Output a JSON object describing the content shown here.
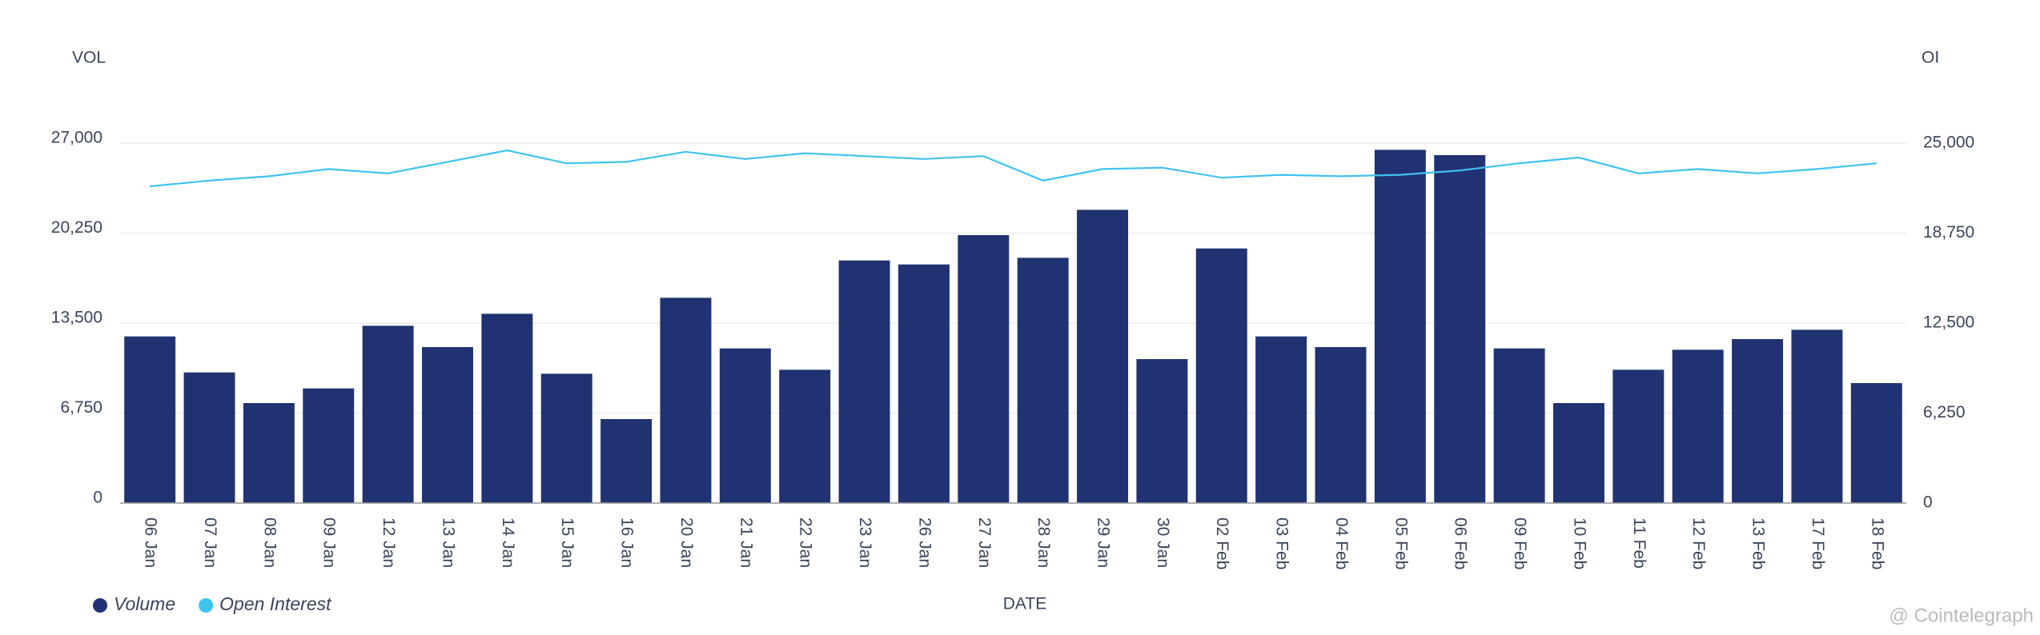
{
  "chart_data": {
    "type": "bar-line",
    "y_axis_title": "VOL",
    "y2_axis_title": "OI",
    "x_axis_title": "DATE",
    "watermark": "@ Cointelegraph",
    "categories": [
      "06 Jan",
      "07 Jan",
      "08 Jan",
      "09 Jan",
      "12 Jan",
      "13 Jan",
      "14 Jan",
      "15 Jan",
      "16 Jan",
      "20 Jan",
      "21 Jan",
      "22 Jan",
      "23 Jan",
      "26 Jan",
      "27 Jan",
      "28 Jan",
      "29 Jan",
      "30 Jan",
      "02 Feb",
      "03 Feb",
      "04 Feb",
      "05 Feb",
      "06 Feb",
      "09 Feb",
      "10 Feb",
      "11 Feb",
      "12 Feb",
      "13 Feb",
      "17 Feb",
      "18 Feb"
    ],
    "series": [
      {
        "name": "Volume",
        "type": "bar",
        "color": "#213272",
        "values": [
          12500,
          9800,
          7500,
          8600,
          13300,
          11700,
          14200,
          9700,
          6300,
          15400,
          11600,
          10000,
          18200,
          17900,
          20100,
          18400,
          22000,
          10800,
          19100,
          12500,
          11700,
          26500,
          26100,
          11600,
          7500,
          10000,
          11500,
          12300,
          13000,
          9000
        ]
      },
      {
        "name": "Open Interest",
        "type": "line",
        "axis": "y2",
        "color": "#3ec3f1",
        "values": [
          22000,
          22400,
          22700,
          23200,
          22900,
          23700,
          24500,
          23600,
          23700,
          24400,
          23900,
          24300,
          24100,
          23900,
          24100,
          22400,
          23200,
          23300,
          22600,
          22800,
          22700,
          22800,
          23100,
          23600,
          24000,
          22900,
          23200,
          22900,
          23200,
          23600
        ]
      }
    ],
    "ylim": [
      0,
      27000
    ],
    "yticks": [
      0,
      {
        "value": 6750,
        "label": "6,750"
      },
      {
        "value": 13500,
        "label": "13,500"
      },
      {
        "value": 20250,
        "label": "20,250"
      },
      {
        "value": 27000,
        "label": "27,000"
      }
    ],
    "y2lim": [
      0,
      25000
    ],
    "y2ticks": [
      0,
      {
        "value": 6250,
        "label": "6,250"
      },
      {
        "value": 12500,
        "label": "12,500"
      },
      {
        "value": 18750,
        "label": "18,750"
      },
      {
        "value": 25000,
        "label": "25,000"
      }
    ],
    "grid": true
  }
}
